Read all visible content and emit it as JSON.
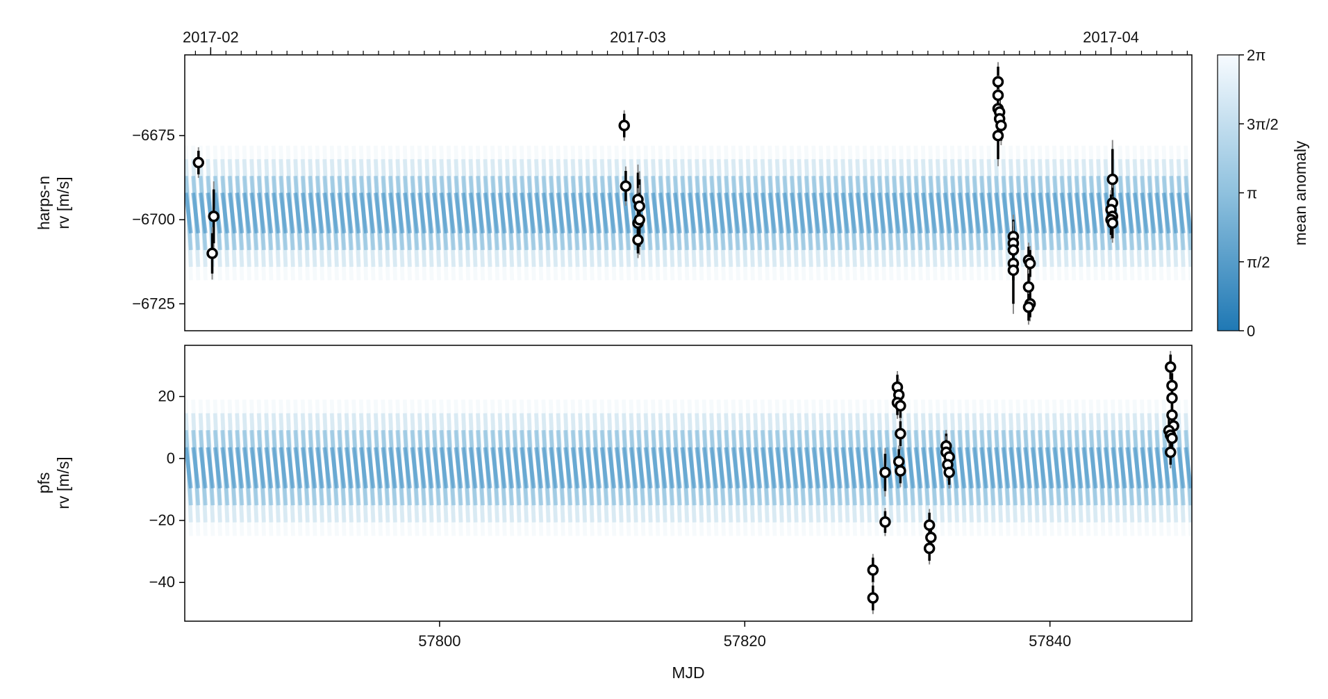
{
  "chart_data": [
    {
      "type": "scatter",
      "panel": "harps-n",
      "ylabel_lines": [
        "harps-n",
        "rv [m/s]"
      ],
      "xlim": [
        57783.3,
        57849.3
      ],
      "ylim": [
        -6733.0,
        -6651.0
      ],
      "yticks": [
        -6675,
        -6700,
        -6725
      ],
      "ytick_labels": [
        "−6675",
        "−6700",
        "−6725"
      ],
      "top_axis": {
        "ticks": [
          57785,
          57813,
          57844
        ],
        "labels": [
          "2017-02",
          "2017-03",
          "2017-04"
        ]
      },
      "model_band": {
        "center": -6698,
        "half_width": 20,
        "cycles": 138
      },
      "series": [
        {
          "points": [
            {
              "x": 57784.2,
              "y": -6683,
              "err": 3.5
            },
            {
              "x": 57785.2,
              "y": -6699,
              "err": 8
            },
            {
              "x": 57785.1,
              "y": -6710,
              "err": 6
            },
            {
              "x": 57812.1,
              "y": -6672,
              "err": 3.5
            },
            {
              "x": 57812.2,
              "y": -6690,
              "err": 4.5
            },
            {
              "x": 57813.0,
              "y": -6694,
              "err": 8
            },
            {
              "x": 57813.1,
              "y": -6696,
              "err": 8
            },
            {
              "x": 57813.0,
              "y": -6701,
              "err": 8
            },
            {
              "x": 57813.1,
              "y": -6700,
              "err": 8
            },
            {
              "x": 57813.0,
              "y": -6706,
              "err": 4
            },
            {
              "x": 57836.6,
              "y": -6659,
              "err": 4.5
            },
            {
              "x": 57836.6,
              "y": -6663,
              "err": 4.5
            },
            {
              "x": 57836.6,
              "y": -6667,
              "err": 4.5
            },
            {
              "x": 57836.7,
              "y": -6668,
              "err": 4.5
            },
            {
              "x": 57836.7,
              "y": -6670,
              "err": 4.5
            },
            {
              "x": 57836.8,
              "y": -6672,
              "err": 4.5
            },
            {
              "x": 57836.6,
              "y": -6675,
              "err": 7
            },
            {
              "x": 57837.6,
              "y": -6705,
              "err": 5
            },
            {
              "x": 57837.6,
              "y": -6707,
              "err": 5
            },
            {
              "x": 57837.6,
              "y": -6709,
              "err": 5
            },
            {
              "x": 57837.6,
              "y": -6713,
              "err": 5
            },
            {
              "x": 57837.6,
              "y": -6715,
              "err": 10
            },
            {
              "x": 57838.6,
              "y": -6712,
              "err": 4
            },
            {
              "x": 57838.7,
              "y": -6713,
              "err": 4
            },
            {
              "x": 57838.6,
              "y": -6720,
              "err": 4
            },
            {
              "x": 57838.7,
              "y": -6725,
              "err": 4
            },
            {
              "x": 57838.6,
              "y": -6726,
              "err": 4
            },
            {
              "x": 57844.1,
              "y": -6688,
              "err": 9
            },
            {
              "x": 57844.1,
              "y": -6695,
              "err": 4.5
            },
            {
              "x": 57844.0,
              "y": -6697,
              "err": 4.5
            },
            {
              "x": 57844.1,
              "y": -6699,
              "err": 4.5
            },
            {
              "x": 57844.0,
              "y": -6700,
              "err": 4.5
            },
            {
              "x": 57844.1,
              "y": -6701,
              "err": 4.5
            }
          ]
        }
      ]
    },
    {
      "type": "scatter",
      "panel": "pfs",
      "ylabel_lines": [
        "pfs",
        "rv [m/s]"
      ],
      "xlabel": "MJD",
      "xlim": [
        57783.3,
        57849.3
      ],
      "ylim": [
        -52.5,
        36.5
      ],
      "yticks": [
        20,
        0,
        -20,
        -40
      ],
      "ytick_labels": [
        "20",
        "0",
        "−20",
        "−40"
      ],
      "xticks": [
        57800,
        57820,
        57840
      ],
      "xtick_labels": [
        "57800",
        "57820",
        "57840"
      ],
      "model_band": {
        "center": -3,
        "half_width": 22,
        "cycles": 138
      },
      "series": [
        {
          "points": [
            {
              "x": 57828.4,
              "y": -36,
              "err": 4
            },
            {
              "x": 57828.4,
              "y": -45,
              "err": 4
            },
            {
              "x": 57829.2,
              "y": -4.5,
              "err": 6
            },
            {
              "x": 57829.2,
              "y": -20.5,
              "err": 3.5
            },
            {
              "x": 57830.0,
              "y": 23,
              "err": 4
            },
            {
              "x": 57830.1,
              "y": 20.5,
              "err": 4
            },
            {
              "x": 57830.0,
              "y": 18,
              "err": 4
            },
            {
              "x": 57830.2,
              "y": 17,
              "err": 4
            },
            {
              "x": 57830.2,
              "y": 8,
              "err": 4
            },
            {
              "x": 57830.1,
              "y": -1,
              "err": 4
            },
            {
              "x": 57830.2,
              "y": -4,
              "err": 4
            },
            {
              "x": 57832.1,
              "y": -21.5,
              "err": 4
            },
            {
              "x": 57832.2,
              "y": -25.5,
              "err": 4
            },
            {
              "x": 57832.1,
              "y": -29,
              "err": 4
            },
            {
              "x": 57833.2,
              "y": 4,
              "err": 4
            },
            {
              "x": 57833.2,
              "y": 2,
              "err": 4
            },
            {
              "x": 57833.4,
              "y": 0.5,
              "err": 4
            },
            {
              "x": 57833.3,
              "y": -2,
              "err": 4
            },
            {
              "x": 57833.4,
              "y": -4.5,
              "err": 4
            },
            {
              "x": 57847.9,
              "y": 29.5,
              "err": 4
            },
            {
              "x": 57848.0,
              "y": 23.5,
              "err": 4
            },
            {
              "x": 57848.0,
              "y": 19.5,
              "err": 4
            },
            {
              "x": 57848.0,
              "y": 14,
              "err": 4
            },
            {
              "x": 57848.1,
              "y": 10.5,
              "err": 4
            },
            {
              "x": 57847.8,
              "y": 9,
              "err": 4
            },
            {
              "x": 57847.9,
              "y": 7.5,
              "err": 4
            },
            {
              "x": 57848.0,
              "y": 6.5,
              "err": 4
            },
            {
              "x": 57847.9,
              "y": 2,
              "err": 4
            }
          ]
        }
      ]
    }
  ],
  "colorbar": {
    "label": "mean anomaly",
    "ticks": [
      "0",
      "π/2",
      "π",
      "3π/2",
      "2π"
    ],
    "color_low": "#1f78b4",
    "color_high": "#f7fbff"
  },
  "colors": {
    "band": "#4a9ccd",
    "marker_edge": "#000000",
    "marker_fill": "#ffffff",
    "error_bar": "#000000"
  }
}
